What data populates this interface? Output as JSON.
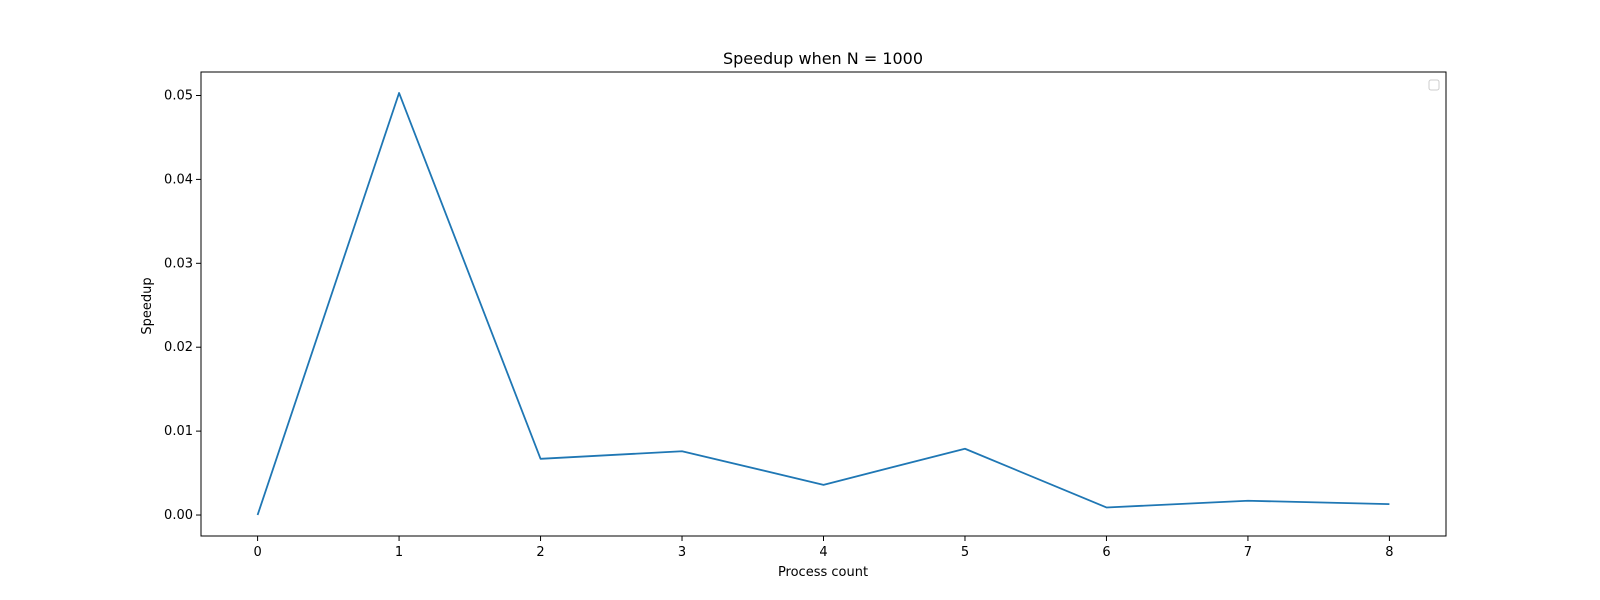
{
  "chart_data": {
    "type": "line",
    "title": "Speedup when N = 1000",
    "xlabel": "Process count",
    "ylabel": "Speedup",
    "x": [
      0,
      1,
      2,
      3,
      4,
      5,
      6,
      7,
      8
    ],
    "series": [
      {
        "values": [
          0.0,
          0.0503,
          0.0067,
          0.0076,
          0.0036,
          0.0079,
          0.0009,
          0.0017,
          0.0013
        ],
        "color": "#1f77b4"
      }
    ],
    "xticks": [
      "0",
      "1",
      "2",
      "3",
      "4",
      "5",
      "6",
      "7",
      "8"
    ],
    "yticks": [
      "0.00",
      "0.01",
      "0.02",
      "0.03",
      "0.04",
      "0.05"
    ],
    "xlim": [
      -0.4,
      8.4
    ],
    "ylim": [
      -0.0025,
      0.0528
    ],
    "grid": false,
    "legend": "top-right, empty"
  }
}
